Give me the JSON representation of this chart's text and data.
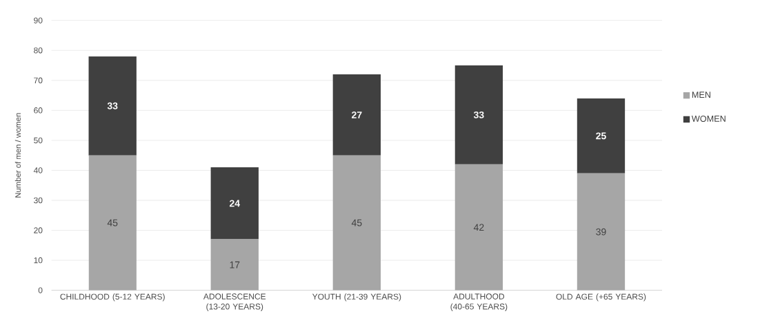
{
  "chart_data": {
    "type": "bar",
    "stacked": true,
    "categories": [
      "CHILDHOOD (5-12 YEARS)",
      "ADOLESCENCE (13-20 YEARS)",
      "YOUTH (21-39 YEARS)",
      "ADULTHOOD (40-65 YEARS)",
      "OLD AGE (+65 YEARS)"
    ],
    "series": [
      {
        "name": "MEN",
        "color": "#a6a6a6",
        "values": [
          45,
          17,
          45,
          42,
          39
        ]
      },
      {
        "name": "WOMEN",
        "color": "#404040",
        "values": [
          33,
          24,
          27,
          33,
          25
        ]
      }
    ],
    "ylabel": "Number of men / women",
    "ylim": [
      0,
      90
    ],
    "yticks": [
      0,
      10,
      20,
      30,
      40,
      50,
      60,
      70,
      80,
      90
    ],
    "grid": "y",
    "legend": "right",
    "data_labels": true
  }
}
